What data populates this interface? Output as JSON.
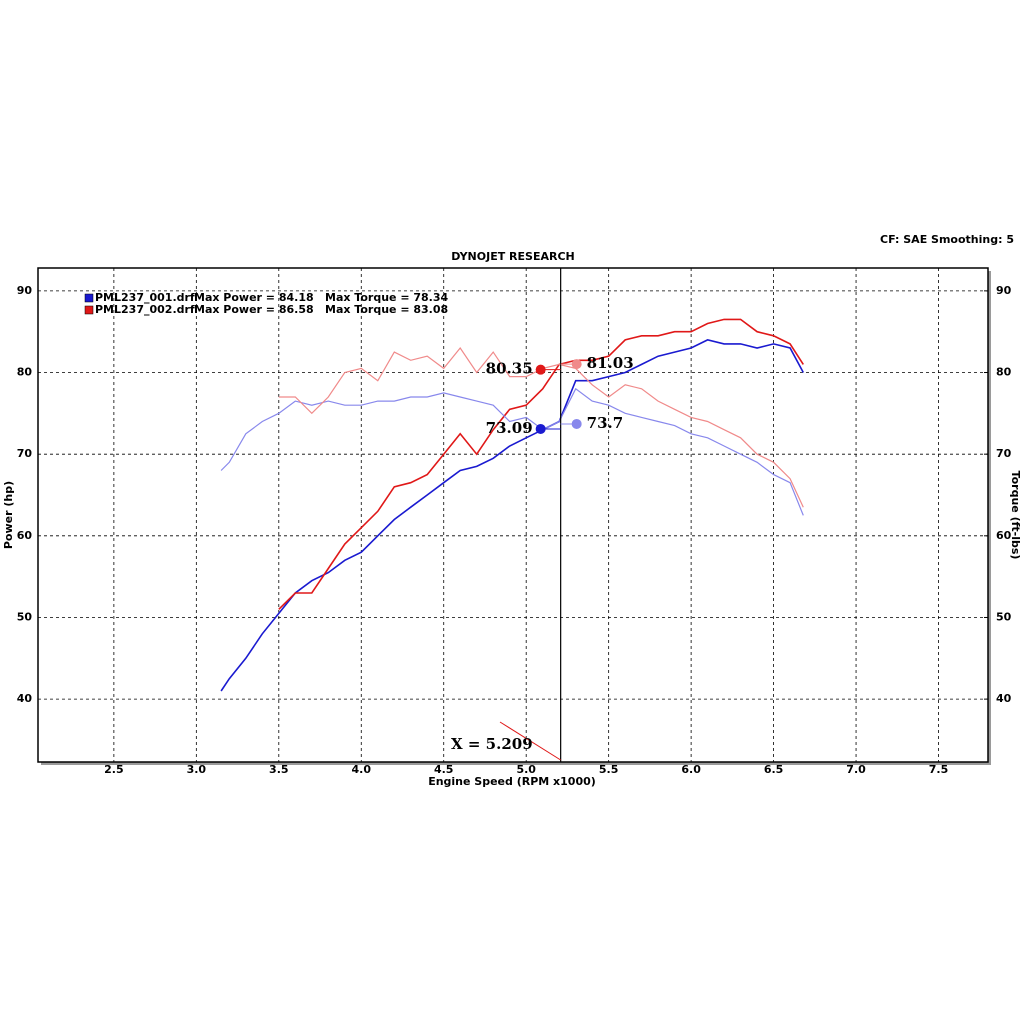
{
  "chart_data": {
    "type": "line",
    "header": "CF: SAE  Smoothing: 5",
    "title": "DYNOJET RESEARCH",
    "x_label": "Engine Speed (RPM x1000)",
    "y_label": "Power (hp)",
    "y2_label": "Torque (ft-lbs)",
    "xlim": [
      2.04,
      7.8
    ],
    "xticks": [
      2.5,
      {
        "value": 3,
        "label": "3.0"
      },
      3.5,
      {
        "value": 4,
        "label": "4.0"
      },
      4.5,
      {
        "value": 5,
        "label": "5.0"
      },
      5.5,
      {
        "value": 6,
        "label": "6.0"
      },
      6.5,
      {
        "value": 7,
        "label": "7.0"
      },
      7.5
    ],
    "ylim": [
      32.3,
      92.8
    ],
    "yticks": [
      40,
      50,
      60,
      70,
      80,
      90
    ],
    "y2lim": [
      32.3,
      92.8
    ],
    "y2ticks": [
      40,
      50,
      60,
      70,
      80,
      90
    ],
    "grid": true,
    "legend": [
      {
        "name": "PML237_001.drf",
        "color": "#1a1ad0",
        "max_power": "Max Power = 84.18",
        "max_torque": "Max Torque = 78.34"
      },
      {
        "name": "PML237_002.drf",
        "color": "#e01818",
        "max_power": "Max Power = 86.58",
        "max_torque": "Max Torque = 83.08"
      }
    ],
    "x": [
      3.15,
      3.2,
      3.3,
      3.4,
      3.5,
      3.6,
      3.7,
      3.8,
      3.9,
      4.0,
      4.1,
      4.2,
      4.3,
      4.4,
      4.5,
      4.6,
      4.7,
      4.8,
      4.9,
      5.0,
      5.1,
      5.2,
      5.3,
      5.4,
      5.5,
      5.6,
      5.7,
      5.8,
      5.9,
      6.0,
      6.1,
      6.2,
      6.3,
      6.4,
      6.5,
      6.6,
      6.68
    ],
    "series": [
      {
        "color": "#1a1ad0",
        "axis": "y",
        "values": [
          41,
          42.5,
          45,
          48,
          50.5,
          53,
          54.5,
          55.5,
          57,
          58,
          60,
          62,
          63.5,
          65,
          66.5,
          68,
          68.5,
          69.5,
          71,
          72,
          73,
          74,
          79,
          79,
          79.5,
          80,
          81,
          82,
          82.5,
          83,
          84,
          83.5,
          83.5,
          83,
          83.5,
          83,
          80
        ]
      },
      {
        "color": "#e01818",
        "axis": "y",
        "values": [
          null,
          null,
          null,
          null,
          51,
          53,
          53,
          56,
          59,
          61,
          63,
          66,
          66.5,
          67.5,
          70,
          72.5,
          70,
          73,
          75.5,
          76,
          78,
          81,
          81.5,
          81.5,
          82,
          84,
          84.5,
          84.5,
          85,
          85,
          86,
          86.5,
          86.5,
          85,
          84.5,
          83.5,
          81
        ]
      },
      {
        "color": "#8888ec",
        "axis": "y2",
        "values": [
          68,
          69,
          72.5,
          74,
          75,
          76.5,
          76,
          76.5,
          76,
          76,
          76.5,
          76.5,
          77,
          77,
          77.5,
          77,
          76.5,
          76,
          74,
          74.5,
          73,
          74,
          78,
          76.5,
          76,
          75,
          74.5,
          74,
          73.5,
          72.5,
          72,
          71,
          70,
          69,
          67.5,
          66.5,
          62.5
        ]
      },
      {
        "color": "#f08a8a",
        "axis": "y2",
        "values": [
          null,
          null,
          null,
          null,
          77,
          77,
          75,
          77,
          80,
          80.5,
          79,
          82.5,
          81.5,
          82,
          80.5,
          83,
          80,
          82.5,
          79.5,
          79.5,
          80.5,
          81,
          80.5,
          78.5,
          77,
          78.5,
          78,
          76.5,
          75.5,
          74.5,
          74,
          73,
          72,
          70,
          69,
          67,
          63.5
        ]
      }
    ],
    "cursor": {
      "value": 5.209,
      "label": "X = 5.209"
    },
    "readouts": [
      {
        "color": "#e01818",
        "axis": "y",
        "value": 80.35
      },
      {
        "color": "#f08a8a",
        "axis": "y2",
        "value": 81.03
      },
      {
        "color": "#1a1ad0",
        "axis": "y",
        "value": 73.09
      },
      {
        "color": "#8888ec",
        "axis": "y2",
        "value": 73.7
      }
    ]
  }
}
